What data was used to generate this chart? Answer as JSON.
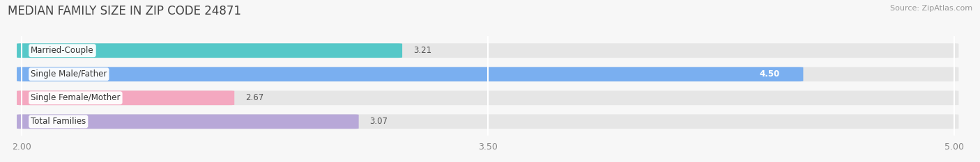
{
  "title": "MEDIAN FAMILY SIZE IN ZIP CODE 24871",
  "source": "Source: ZipAtlas.com",
  "categories": [
    "Married-Couple",
    "Single Male/Father",
    "Single Female/Mother",
    "Total Families"
  ],
  "values": [
    3.21,
    4.5,
    2.67,
    3.07
  ],
  "bar_colors": [
    "#55c8c8",
    "#7aaff0",
    "#f4a8c0",
    "#b8a8d8"
  ],
  "xlim": [
    2.0,
    5.0
  ],
  "xticks": [
    2.0,
    3.5,
    5.0
  ],
  "xtick_labels": [
    "2.00",
    "3.50",
    "5.00"
  ],
  "bar_height": 0.58,
  "label_fontsize": 8.5,
  "title_fontsize": 12,
  "value_color_special": [
    false,
    true,
    false,
    false
  ],
  "background_color": "#f7f7f7",
  "bar_background_color": "#e6e6e6"
}
